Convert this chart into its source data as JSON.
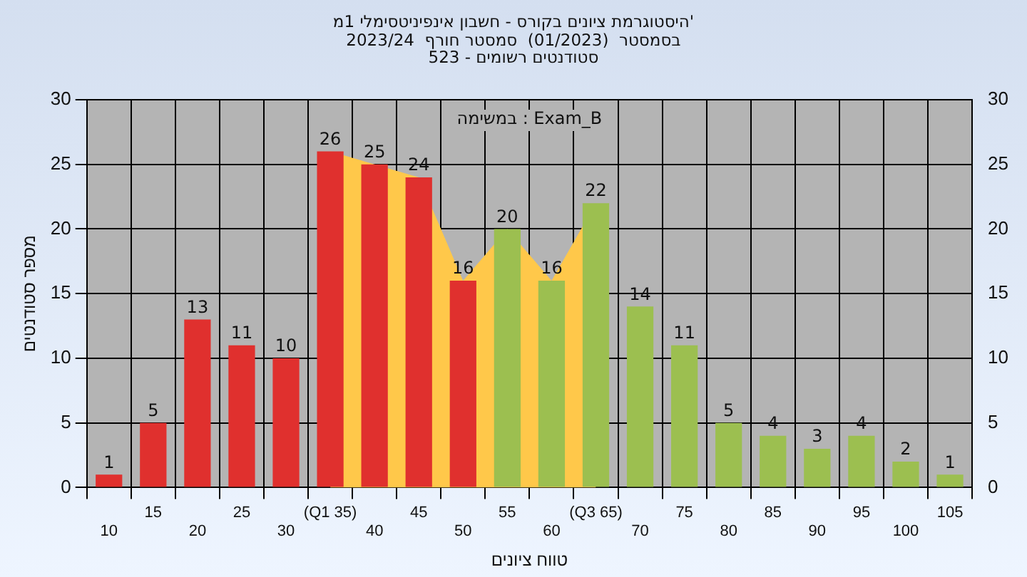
{
  "chart_data": {
    "type": "bar",
    "title": "היסטוגרמת ציונים בקורס - חשבון אינפיניטסימלי 1מ'",
    "subtitle": "בסמסטר  (01/2023)  סמסטר חורף  2023/24\nסטודנטים רשומים - 523",
    "xlabel": "טווח ציונים",
    "ylabel": "מספר סטודנטים",
    "annotations": [
      "במשימה : Exam_B"
    ],
    "categories": [
      "10",
      "15",
      "20",
      "25",
      "30",
      "(Q1 35)",
      "40",
      "45",
      "50",
      "55",
      "60",
      "(Q3 65)",
      "70",
      "75",
      "80",
      "85",
      "90",
      "95",
      "100",
      "105"
    ],
    "series": [
      {
        "type": "area",
        "color": "#ffc84a",
        "values": [
          null,
          null,
          null,
          null,
          null,
          26,
          25,
          24,
          16,
          20,
          16,
          22,
          null,
          null,
          null,
          null,
          null,
          null,
          null,
          null
        ]
      },
      {
        "colors": [
          "#e0302e",
          "#e0302e",
          "#e0302e",
          "#e0302e",
          "#e0302e",
          "#e0302e",
          "#e0302e",
          "#e0302e",
          "#e0302e",
          "#9cbf50",
          "#9cbf50",
          "#9cbf50",
          "#9cbf50",
          "#9cbf50",
          "#9cbf50",
          "#9cbf50",
          "#9cbf50",
          "#9cbf50",
          "#9cbf50",
          "#9cbf50"
        ],
        "values": [
          1,
          5,
          13,
          11,
          10,
          26,
          25,
          24,
          16,
          20,
          16,
          22,
          14,
          11,
          5,
          4,
          3,
          4,
          2,
          1
        ],
        "value_labels": [
          "1",
          "5",
          "13",
          "11",
          "10",
          "26",
          "25",
          "24",
          "16",
          "20",
          "16",
          "22",
          "14",
          "11",
          "5",
          "4",
          "3",
          "4",
          "2",
          "1"
        ]
      }
    ],
    "ylim": [
      0,
      30
    ],
    "yticks": [
      0,
      5,
      10,
      15,
      20,
      25,
      30
    ],
    "y2lim": [
      0,
      30
    ],
    "y2ticks": [
      0,
      5,
      10,
      15,
      20,
      25,
      30
    ],
    "grid": true,
    "legend": false
  }
}
